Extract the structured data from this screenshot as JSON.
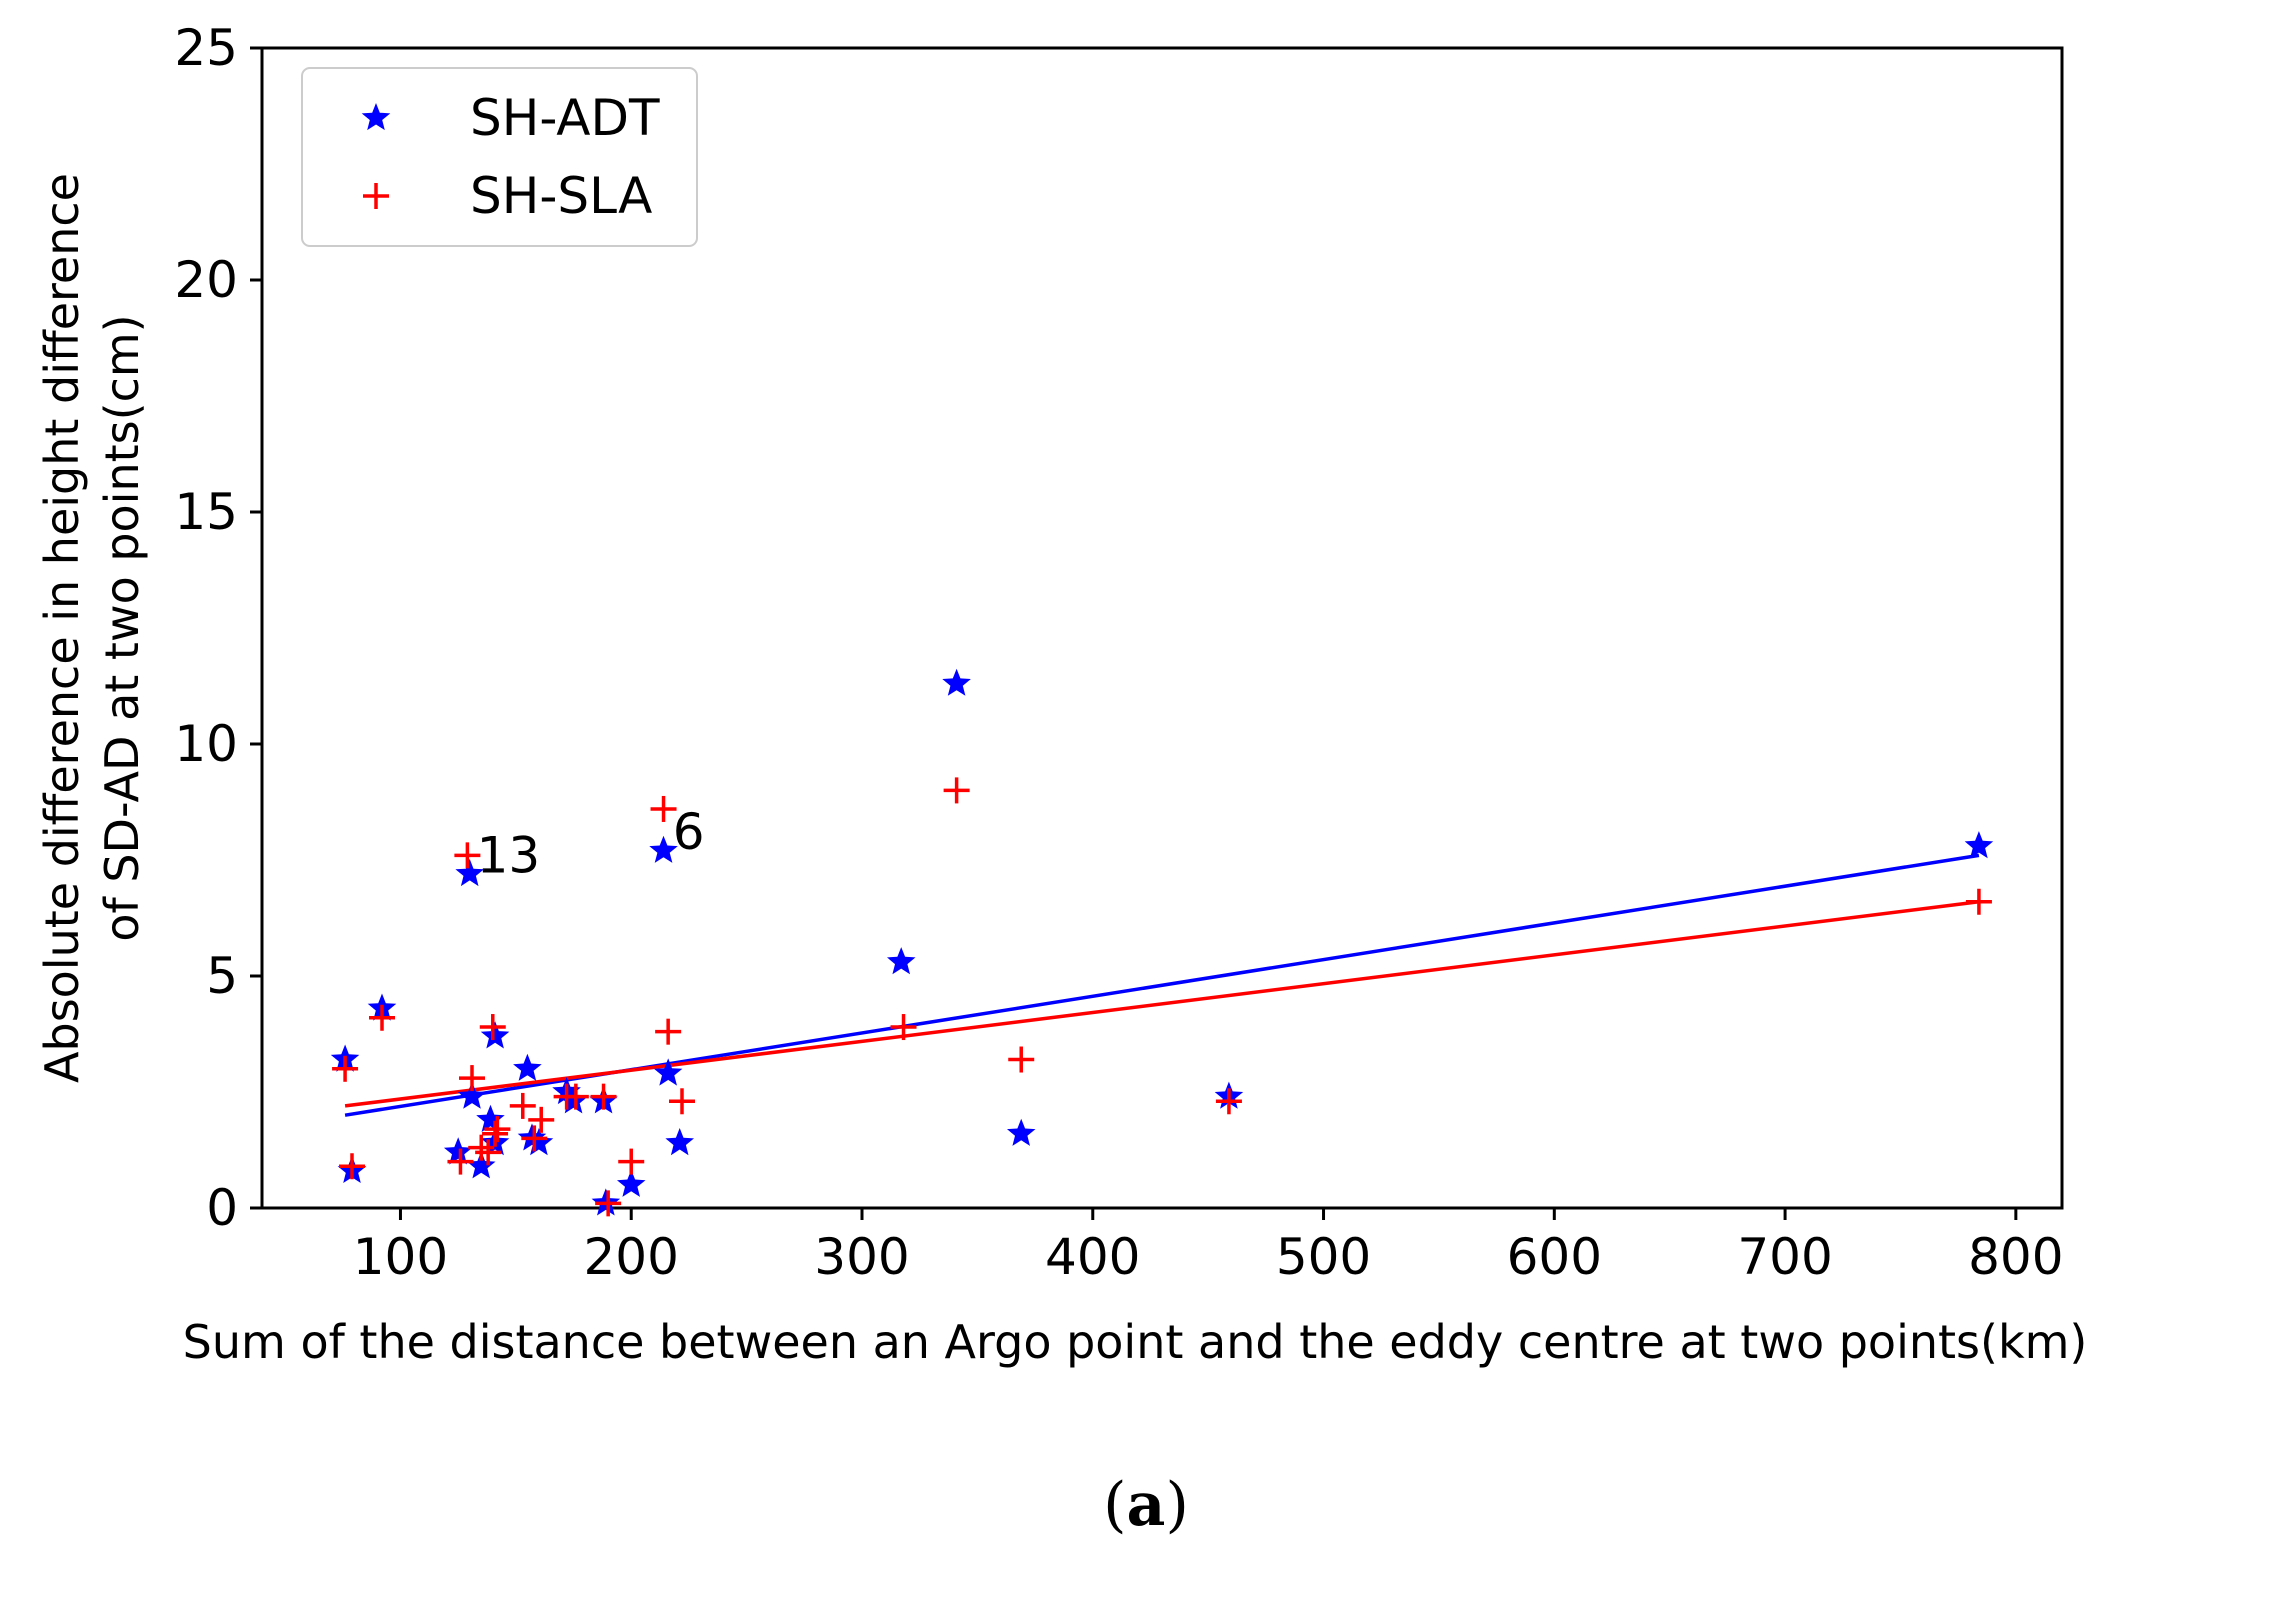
{
  "chart_data": {
    "type": "scatter",
    "xlabel": "Sum of the distance between an Argo point and the eddy centre at two points(km)",
    "ylabel_line1": "Absolute difference in height difference",
    "ylabel_line2": "of SD-AD at two points(cm)",
    "xlim": [
      40,
      820
    ],
    "ylim": [
      0,
      25
    ],
    "xticks": [
      100,
      200,
      300,
      400,
      500,
      600,
      700,
      800
    ],
    "yticks": [
      0,
      5,
      10,
      15,
      20,
      25
    ],
    "legend_position": "top-left",
    "series": [
      {
        "name": "SH-ADT",
        "marker": "star",
        "color": "#0000ff",
        "x": [
          76,
          79,
          92,
          125,
          130,
          131,
          135,
          139,
          141,
          141,
          155,
          157,
          160,
          172,
          175,
          188,
          189,
          200,
          214,
          216,
          221,
          317,
          341,
          369,
          459,
          784
        ],
        "y": [
          3.2,
          0.8,
          4.3,
          1.2,
          7.2,
          2.4,
          0.9,
          1.9,
          3.7,
          1.4,
          3.0,
          1.5,
          1.4,
          2.5,
          2.3,
          2.3,
          0.1,
          0.5,
          7.7,
          2.9,
          1.4,
          5.3,
          11.3,
          1.6,
          2.4,
          7.8
        ],
        "trend": {
          "x": [
            76,
            784
          ],
          "y": [
            2.0,
            7.6
          ]
        }
      },
      {
        "name": "SH-SLA",
        "marker": "plus",
        "color": "#ff0000",
        "x": [
          76,
          79,
          92,
          126,
          129,
          131,
          135,
          138,
          140,
          141,
          142,
          153,
          158,
          161,
          172,
          176,
          188,
          190,
          200,
          214,
          216,
          222,
          318,
          341,
          369,
          459,
          784
        ],
        "y": [
          3.0,
          0.9,
          4.1,
          1.0,
          7.6,
          2.8,
          1.3,
          1.2,
          3.9,
          1.6,
          1.7,
          2.2,
          1.5,
          1.9,
          2.4,
          2.4,
          2.4,
          0.1,
          1.0,
          8.6,
          3.8,
          2.3,
          3.9,
          9.0,
          3.2,
          2.3,
          6.6
        ],
        "trend": {
          "x": [
            76,
            784
          ],
          "y": [
            2.2,
            6.6
          ]
        }
      }
    ],
    "annotations": [
      {
        "text": "13",
        "x": 133,
        "y": 7.6
      },
      {
        "text": "6",
        "x": 218,
        "y": 8.1
      }
    ]
  },
  "caption": {
    "open": "(",
    "letter": "a",
    "close": ")"
  }
}
